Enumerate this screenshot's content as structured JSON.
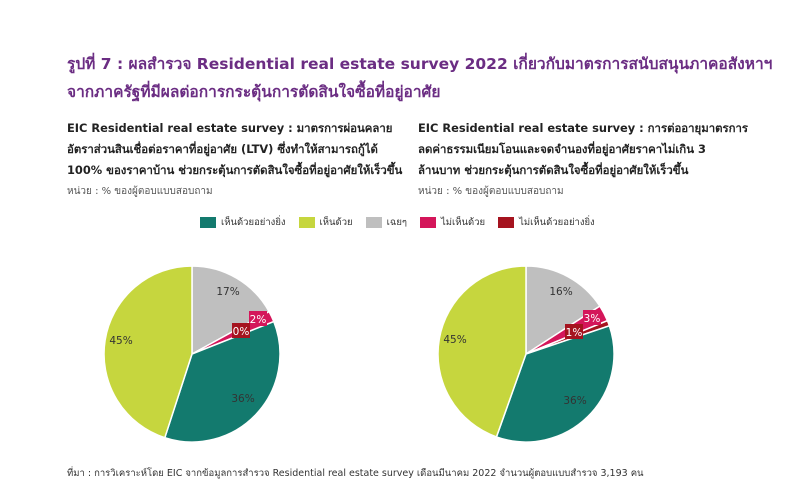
{
  "title": {
    "line1": "รูปที่ 7 : ผลสำรวจ Residential real estate survey 2022 เกี่ยวกับมาตรการสนับสนุนภาคอสังหาฯ",
    "line2": "จากภาครัฐที่มีผลต่อการกระตุ้นการตัดสินใจซื้อที่อยู่อาศัย"
  },
  "legend": [
    {
      "label": "เห็นด้วยอย่างยิ่ง",
      "color": "#137a6e"
    },
    {
      "label": "เห็นด้วย",
      "color": "#c6d63e"
    },
    {
      "label": "เฉยๆ",
      "color": "#bfbfbf"
    },
    {
      "label": "ไม่เห็นด้วย",
      "color": "#d4165a"
    },
    {
      "label": "ไม่เห็นด้วยอย่างยิ่ง",
      "color": "#a5131f"
    }
  ],
  "left": {
    "subtitle_lines": [
      "EIC Residential real estate survey : มาตรการผ่อนคลาย",
      "อัตราส่วนสินเชื่อต่อราคาที่อยู่อาศัย (LTV) ซึ่งทำให้สามารถกู้ได้",
      "100% ของราคาบ้าน ช่วยกระตุ้นการตัดสินใจซื้อที่อยู่อาศัยให้เร็วขึ้น"
    ],
    "unit": "หน่วย : % ของผู้ตอบแบบสอบถาม"
  },
  "right": {
    "subtitle_lines": [
      "EIC Residential real estate survey : การต่ออายุมาตรการ",
      "ลดค่าธรรมเนียมโอนและจดจำนองที่อยู่อาศัยราคาไม่เกิน  3",
      "ล้านบาท ช่วยกระตุ้นการตัดสินใจซื้อที่อยู่อาศัยให้เร็วขึ้น"
    ],
    "unit": "หน่วย : % ของผู้ตอบแบบสอบถาม"
  },
  "source": "ที่มา : การวิเคราะห์โดย EIC จากข้อมูลการสำรวจ  Residential real estate survey เดือนมีนาคม 2022 จำนวนผู้ตอบแบบสำรวจ 3,193 คน",
  "chart_data": [
    {
      "type": "pie",
      "categories": [
        "เห็นด้วยอย่างยิ่ง",
        "เห็นด้วย",
        "เฉยๆ",
        "ไม่เห็นด้วย",
        "ไม่เห็นด้วยอย่างยิ่ง"
      ],
      "values": [
        36,
        45,
        17,
        2,
        0
      ],
      "value_labels": [
        "36%",
        "45%",
        "17%",
        "2%",
        "0%"
      ],
      "colors": [
        "#137a6e",
        "#c6d63e",
        "#bfbfbf",
        "#d4165a",
        "#a5131f"
      ]
    },
    {
      "type": "pie",
      "categories": [
        "เห็นด้วยอย่างยิ่ง",
        "เห็นด้วย",
        "เฉยๆ",
        "ไม่เห็นด้วย",
        "ไม่เห็นด้วยอย่างยิ่ง"
      ],
      "values": [
        36,
        45,
        16,
        3,
        1
      ],
      "value_labels": [
        "36%",
        "45%",
        "16%",
        "3%",
        "1%"
      ],
      "colors": [
        "#137a6e",
        "#c6d63e",
        "#bfbfbf",
        "#d4165a",
        "#a5131f"
      ]
    }
  ]
}
